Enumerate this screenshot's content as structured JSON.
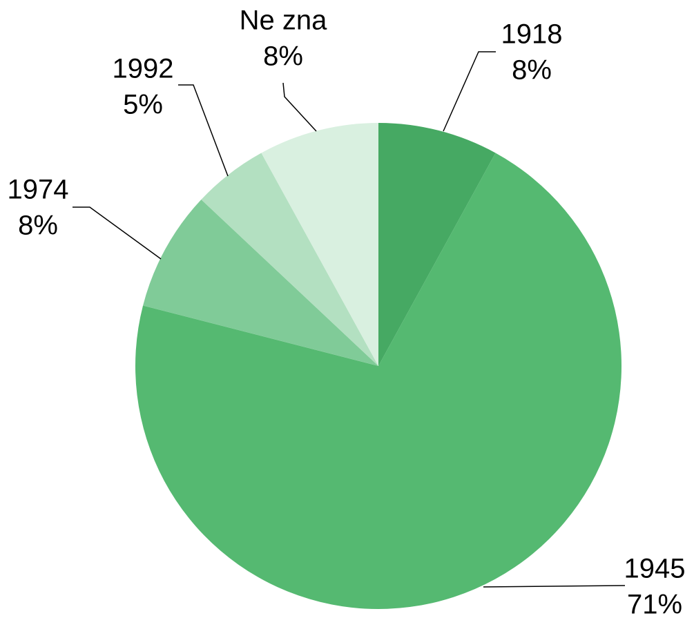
{
  "chart_data": {
    "type": "pie",
    "categories": [
      "1918",
      "1945",
      "1974",
      "1992",
      "Ne zna"
    ],
    "values": [
      8,
      71,
      8,
      5,
      8
    ],
    "value_labels": [
      "8%",
      "71%",
      "8%",
      "5%",
      "8%"
    ],
    "colors": [
      "#46a963",
      "#55b971",
      "#80cb98",
      "#b3e0c1",
      "#d9f0e0"
    ]
  }
}
